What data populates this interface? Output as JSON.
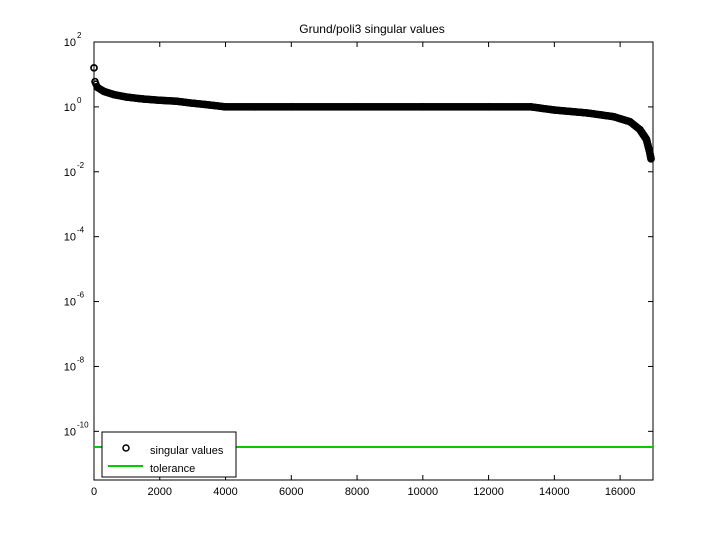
{
  "chart_data": {
    "type": "scatter",
    "title": "Grund/poli3 singular values",
    "xlabel": "",
    "ylabel": "",
    "xlim": [
      0,
      17000
    ],
    "ylim_log10": [
      -11.5,
      2
    ],
    "yscale": "log",
    "grid": false,
    "legend_position": "bottom-left",
    "x_ticks": [
      {
        "value": 0,
        "label": "0"
      },
      {
        "value": 2000,
        "label": "2000"
      },
      {
        "value": 4000,
        "label": "4000"
      },
      {
        "value": 6000,
        "label": "6000"
      },
      {
        "value": 8000,
        "label": "8000"
      },
      {
        "value": 10000,
        "label": "10000"
      },
      {
        "value": 12000,
        "label": "12000"
      },
      {
        "value": 14000,
        "label": "14000"
      },
      {
        "value": 16000,
        "label": "16000"
      }
    ],
    "y_ticks": [
      {
        "exp": 2,
        "base": "10",
        "sup": "2"
      },
      {
        "exp": 0,
        "base": "10",
        "sup": "0"
      },
      {
        "exp": -2,
        "base": "10",
        "sup": "-2"
      },
      {
        "exp": -4,
        "base": "10",
        "sup": "-4"
      },
      {
        "exp": -6,
        "base": "10",
        "sup": "-6"
      },
      {
        "exp": -8,
        "base": "10",
        "sup": "-8"
      },
      {
        "exp": -10,
        "base": "10",
        "sup": "-10"
      }
    ],
    "series": [
      {
        "name": "singular values",
        "marker": "circle",
        "color": "#000000",
        "points": [
          {
            "x": 0,
            "y": 16
          },
          {
            "x": 30,
            "y": 6
          },
          {
            "x": 100,
            "y": 4
          },
          {
            "x": 300,
            "y": 3
          },
          {
            "x": 600,
            "y": 2.4
          },
          {
            "x": 1000,
            "y": 2.0
          },
          {
            "x": 1500,
            "y": 1.75
          },
          {
            "x": 2000,
            "y": 1.6
          },
          {
            "x": 2500,
            "y": 1.5
          },
          {
            "x": 3000,
            "y": 1.3
          },
          {
            "x": 3500,
            "y": 1.15
          },
          {
            "x": 4000,
            "y": 1.0
          },
          {
            "x": 6000,
            "y": 1.0
          },
          {
            "x": 8000,
            "y": 1.0
          },
          {
            "x": 10000,
            "y": 1.0
          },
          {
            "x": 12000,
            "y": 1.0
          },
          {
            "x": 13300,
            "y": 1.0
          },
          {
            "x": 14000,
            "y": 0.8
          },
          {
            "x": 15000,
            "y": 0.65
          },
          {
            "x": 15800,
            "y": 0.5
          },
          {
            "x": 16300,
            "y": 0.35
          },
          {
            "x": 16600,
            "y": 0.2
          },
          {
            "x": 16800,
            "y": 0.1
          },
          {
            "x": 16900,
            "y": 0.04
          },
          {
            "x": 16940,
            "y": 0.025
          }
        ]
      },
      {
        "name": "tolerance",
        "marker": "line",
        "color": "#00cc00",
        "points": [
          {
            "x": 0,
            "y": 3.3e-11
          },
          {
            "x": 17000,
            "y": 3.3e-11
          }
        ]
      }
    ]
  }
}
